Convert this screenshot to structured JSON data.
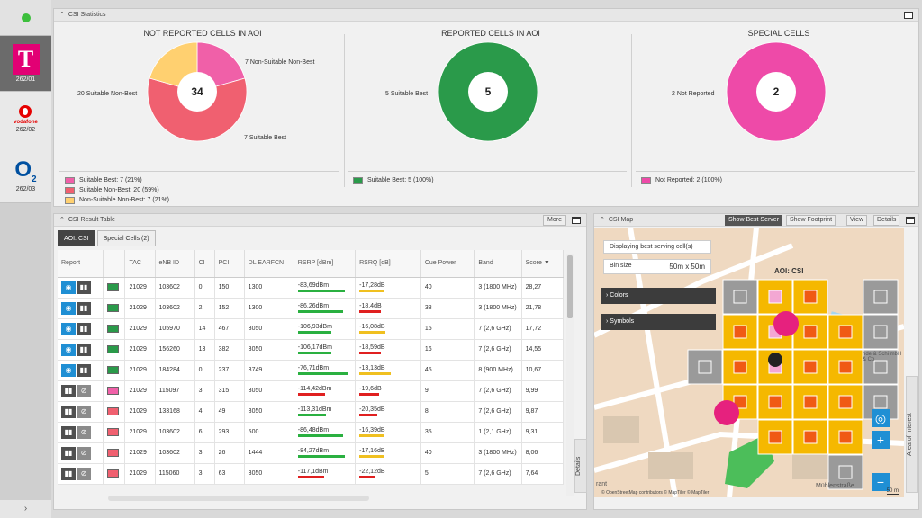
{
  "colors": {
    "pink": "#f060a8",
    "red": "#f06070",
    "yellow": "#ffd070",
    "green": "#2a9a4a",
    "magenta": "#ee4aa8",
    "blue": "#1f8fd4"
  },
  "operators": [
    {
      "name": "Telekom",
      "code": "262/01",
      "logo": "T"
    },
    {
      "name": "vodafone",
      "code": "262/02",
      "logo": "vodafone"
    },
    {
      "name": "O2",
      "code": "262/03",
      "logo": "O"
    }
  ],
  "rail_footer": "›",
  "stats": {
    "title": "CSI Statistics",
    "charts": [
      {
        "title": "NOT REPORTED CELLS IN AOI",
        "total": "34",
        "labels": [
          "20 Suitable Non-Best",
          "7 Non-Suitable Non-Best",
          "7 Suitable Best"
        ],
        "legend": [
          "Suitable Best: 7 (21%)",
          "Suitable Non-Best: 20 (59%)",
          "Non-Suitable Non-Best: 7 (21%)"
        ]
      },
      {
        "title": "REPORTED CELLS IN AOI",
        "total": "5",
        "labels": [
          "5 Suitable Best"
        ],
        "legend": [
          "Suitable Best: 5 (100%)"
        ]
      },
      {
        "title": "SPECIAL CELLS",
        "total": "2",
        "labels": [
          "2 Not Reported"
        ],
        "legend": [
          "Not Reported: 2 (100%)"
        ]
      }
    ]
  },
  "chart_data": [
    {
      "type": "pie",
      "title": "NOT REPORTED CELLS IN AOI",
      "categories": [
        "Suitable Best",
        "Suitable Non-Best",
        "Non-Suitable Non-Best"
      ],
      "values": [
        7,
        20,
        7
      ]
    },
    {
      "type": "pie",
      "title": "REPORTED CELLS IN AOI",
      "categories": [
        "Suitable Best"
      ],
      "values": [
        5
      ]
    },
    {
      "type": "pie",
      "title": "SPECIAL CELLS",
      "categories": [
        "Not Reported"
      ],
      "values": [
        2
      ]
    }
  ],
  "table": {
    "title": "CSI Result Table",
    "more_label": "More",
    "tabs": [
      "AOI: CSI",
      "Special Cells (2)"
    ],
    "headers": [
      "Report",
      "",
      "TAC",
      "eNB ID",
      "CI",
      "PCI",
      "DL EARFCN",
      "RSRP [dBm]",
      "RSRQ [dB]",
      "Cue Power",
      "Band",
      "Score ▼"
    ],
    "side_label": "Details",
    "rows": [
      {
        "reported": true,
        "color": "#2a9a4a",
        "tac": "21029",
        "enb": "103602",
        "ci": "0",
        "pci": "150",
        "earfcn": "1300",
        "rsrp": "-83,69dBm",
        "rsrp_pct": 0.86,
        "rsrp_color": "#2ab040",
        "rsrq": "-17,28dB",
        "rsrq_pct": 0.45,
        "rsrq_color": "#f0c020",
        "cue": "40",
        "band": "3 (1800 MHz)",
        "score": "28,27"
      },
      {
        "reported": true,
        "color": "#2a9a4a",
        "tac": "21029",
        "enb": "103602",
        "ci": "2",
        "pci": "152",
        "earfcn": "1300",
        "rsrp": "-86,26dBm",
        "rsrp_pct": 0.84,
        "rsrp_color": "#2ab040",
        "rsrq": "-18,4dB",
        "rsrq_pct": 0.4,
        "rsrq_color": "#e02020",
        "cue": "38",
        "band": "3 (1800 MHz)",
        "score": "21,78"
      },
      {
        "reported": true,
        "color": "#2a9a4a",
        "tac": "21029",
        "enb": "105970",
        "ci": "14",
        "pci": "467",
        "earfcn": "3050",
        "rsrp": "-106,93dBm",
        "rsrp_pct": 0.62,
        "rsrp_color": "#2ab040",
        "rsrq": "-16,08dB",
        "rsrq_pct": 0.48,
        "rsrq_color": "#f0c020",
        "cue": "15",
        "band": "7 (2,6 GHz)",
        "score": "17,72"
      },
      {
        "reported": true,
        "color": "#2a9a4a",
        "tac": "21029",
        "enb": "156260",
        "ci": "13",
        "pci": "382",
        "earfcn": "3050",
        "rsrp": "-106,17dBm",
        "rsrp_pct": 0.62,
        "rsrp_color": "#2ab040",
        "rsrq": "-18,59dB",
        "rsrq_pct": 0.4,
        "rsrq_color": "#e02020",
        "cue": "16",
        "band": "7 (2,6 GHz)",
        "score": "14,55"
      },
      {
        "reported": true,
        "color": "#2a9a4a",
        "tac": "21029",
        "enb": "184284",
        "ci": "0",
        "pci": "237",
        "earfcn": "3749",
        "rsrp": "-76,71dBm",
        "rsrp_pct": 0.92,
        "rsrp_color": "#2ab040",
        "rsrq": "-13,13dB",
        "rsrq_pct": 0.58,
        "rsrq_color": "#f0c020",
        "cue": "45",
        "band": "8 (900 MHz)",
        "score": "10,67"
      },
      {
        "reported": false,
        "color": "#f060a8",
        "tac": "21029",
        "enb": "115097",
        "ci": "3",
        "pci": "315",
        "earfcn": "3050",
        "rsrp": "-114,42dBm",
        "rsrp_pct": 0.5,
        "rsrp_color": "#e02020",
        "rsrq": "-19,6dB",
        "rsrq_pct": 0.36,
        "rsrq_color": "#e02020",
        "cue": "9",
        "band": "7 (2,6 GHz)",
        "score": "9,99"
      },
      {
        "reported": false,
        "color": "#f06070",
        "tac": "21029",
        "enb": "133168",
        "ci": "4",
        "pci": "49",
        "earfcn": "3050",
        "rsrp": "-113,31dBm",
        "rsrp_pct": 0.52,
        "rsrp_color": "#2ab040",
        "rsrq": "-20,35dB",
        "rsrq_pct": 0.34,
        "rsrq_color": "#e02020",
        "cue": "8",
        "band": "7 (2,6 GHz)",
        "score": "9,87"
      },
      {
        "reported": false,
        "color": "#f06070",
        "tac": "21029",
        "enb": "103602",
        "ci": "6",
        "pci": "293",
        "earfcn": "500",
        "rsrp": "-86,48dBm",
        "rsrp_pct": 0.84,
        "rsrp_color": "#2ab040",
        "rsrq": "-16,39dB",
        "rsrq_pct": 0.46,
        "rsrq_color": "#f0c020",
        "cue": "35",
        "band": "1 (2,1 GHz)",
        "score": "9,31"
      },
      {
        "reported": false,
        "color": "#f06070",
        "tac": "21029",
        "enb": "103602",
        "ci": "3",
        "pci": "26",
        "earfcn": "1444",
        "rsrp": "-84,27dBm",
        "rsrp_pct": 0.86,
        "rsrp_color": "#2ab040",
        "rsrq": "-17,16dB",
        "rsrq_pct": 0.45,
        "rsrq_color": "#f0c020",
        "cue": "40",
        "band": "3 (1800 MHz)",
        "score": "8,06"
      },
      {
        "reported": false,
        "color": "#f06070",
        "tac": "21029",
        "enb": "115060",
        "ci": "3",
        "pci": "63",
        "earfcn": "3050",
        "rsrp": "-117,1dBm",
        "rsrp_pct": 0.48,
        "rsrp_color": "#e02020",
        "rsrq": "-22,12dB",
        "rsrq_pct": 0.3,
        "rsrq_color": "#e02020",
        "cue": "5",
        "band": "7 (2,6 GHz)",
        "score": "7,64"
      }
    ]
  },
  "map": {
    "title": "CSI Map",
    "buttons": [
      "Show Best Server",
      "Show Footprint",
      "View",
      "Details"
    ],
    "info": "Displaying best serving cell(s)",
    "bin_label": "Bin size",
    "bin_value": "50m x 50m",
    "accordions": [
      "Colors",
      "Symbols"
    ],
    "aoi_label": "AOI: CSI",
    "street": "Mühlenstraße",
    "attribution": "© OpenStreetMap contributors  © MapTiler  © MapTiler",
    "scale": "50 m",
    "side_label": "Area of Interest",
    "place_label": "rant",
    "poi_label": "nde & Schi mbH & Co"
  }
}
